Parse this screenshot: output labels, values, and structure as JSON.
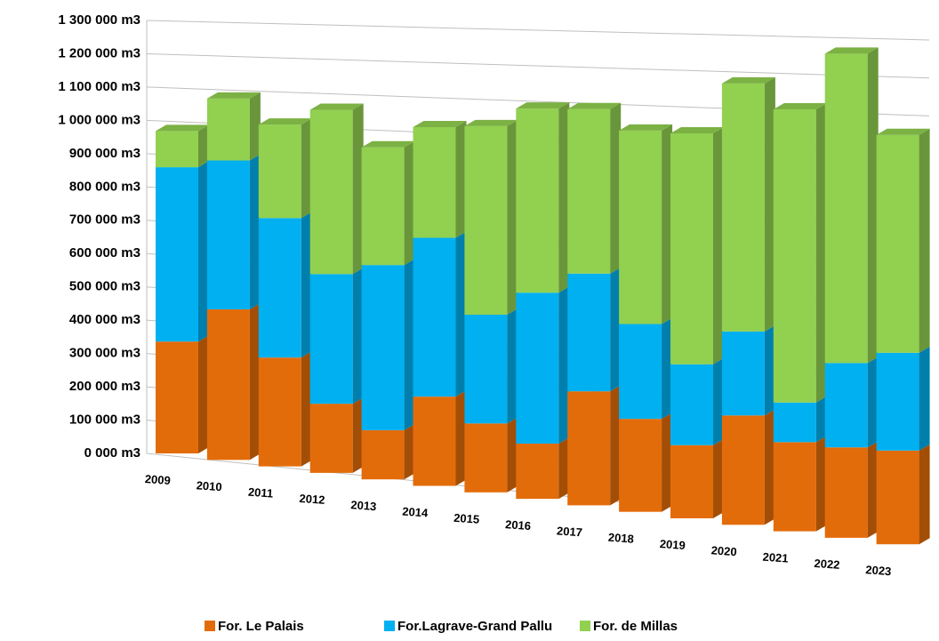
{
  "chart_data": {
    "type": "bar3d_stacked",
    "categories": [
      "2009",
      "2010",
      "2011",
      "2012",
      "2013",
      "2014",
      "2015",
      "2016",
      "2017",
      "2018",
      "2019",
      "2020",
      "2021",
      "2022",
      "2023"
    ],
    "series": [
      {
        "name": "For. Le Palais",
        "color": "#e36c0a",
        "values": [
          340000,
          450000,
          320000,
          200000,
          140000,
          250000,
          190000,
          150000,
          305000,
          245000,
          190000,
          280000,
          225000,
          225000,
          230000
        ]
      },
      {
        "name": "For.Lagrave-Grand Pallu",
        "color": "#00b0f0",
        "values": [
          530000,
          445000,
          410000,
          375000,
          470000,
          445000,
          300000,
          410000,
          315000,
          250000,
          210000,
          215000,
          100000,
          210000,
          240000
        ]
      },
      {
        "name": "For. de Millas",
        "color": "#92d050",
        "values": [
          110000,
          185000,
          275000,
          475000,
          335000,
          310000,
          520000,
          500000,
          440000,
          510000,
          600000,
          635000,
          740000,
          770000,
          535000
        ]
      }
    ],
    "ylim": [
      0,
      1300000
    ],
    "yticks": [
      {
        "value": 0,
        "label": "0 000 m3"
      },
      {
        "value": 100000,
        "label": "100 000 m3"
      },
      {
        "value": 200000,
        "label": "200 000 m3"
      },
      {
        "value": 300000,
        "label": "300 000 m3"
      },
      {
        "value": 400000,
        "label": "400 000 m3"
      },
      {
        "value": 500000,
        "label": "500 000 m3"
      },
      {
        "value": 600000,
        "label": "600 000 m3"
      },
      {
        "value": 700000,
        "label": "700 000 m3"
      },
      {
        "value": 800000,
        "label": "800 000 m3"
      },
      {
        "value": 900000,
        "label": "900 000 m3"
      },
      {
        "value": 1000000,
        "label": "1 000 000 m3"
      },
      {
        "value": 1100000,
        "label": "1 100 000 m3"
      },
      {
        "value": 1200000,
        "label": "1 200 000 m3"
      },
      {
        "value": 1300000,
        "label": "1 300 000 m3"
      }
    ],
    "grid": true,
    "legend": "bottom"
  }
}
